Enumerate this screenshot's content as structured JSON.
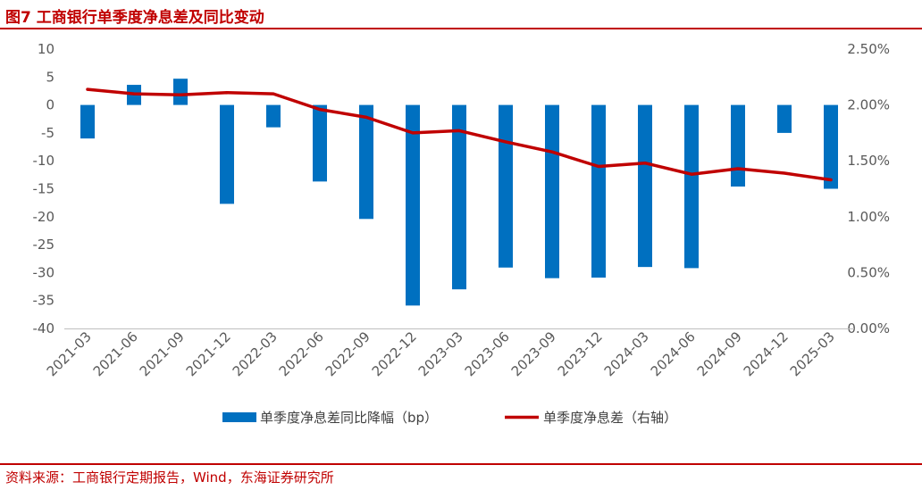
{
  "header": {
    "title": "图7  工商银行单季度净息差及同比变动"
  },
  "footer": {
    "source": "资料来源：工商银行定期报告，Wind，东海证券研究所"
  },
  "chart_data": {
    "type": "bar+line",
    "title": "图7  工商银行单季度净息差及同比变动",
    "categories": [
      "2021-03",
      "2021-06",
      "2021-09",
      "2021-12",
      "2022-03",
      "2022-06",
      "2022-09",
      "2022-12",
      "2023-03",
      "2023-06",
      "2023-09",
      "2023-12",
      "2024-03",
      "2024-06",
      "2024-09",
      "2024-12",
      "2025-03"
    ],
    "series": [
      {
        "name": "单季度净息差同比降幅（bp）",
        "type": "bar",
        "axis": "left",
        "color": "#0070c0",
        "values": [
          -6,
          3.6,
          4.7,
          -17.7,
          -4,
          -13.7,
          -20.4,
          -35.9,
          -33,
          -29.1,
          -31,
          -30.9,
          -29,
          -29.2,
          -14.6,
          -5,
          -15
        ]
      },
      {
        "name": "单季度净息差（右轴）",
        "type": "line",
        "axis": "right",
        "color": "#c00000",
        "values": [
          2.14,
          2.1,
          2.09,
          2.11,
          2.1,
          1.96,
          1.89,
          1.75,
          1.77,
          1.67,
          1.58,
          1.45,
          1.48,
          1.38,
          1.43,
          1.39,
          1.33
        ]
      }
    ],
    "y_left": {
      "min": -40,
      "max": 10,
      "ticks": [
        "10",
        "5",
        "0",
        "-5",
        "-10",
        "-15",
        "-20",
        "-25",
        "-30",
        "-35",
        "-40"
      ]
    },
    "y_right": {
      "min": 0,
      "max": 2.5,
      "ticks": [
        "2.50%",
        "2.00%",
        "1.50%",
        "1.00%",
        "0.50%",
        "0.00%"
      ]
    },
    "legend": {
      "position": "bottom",
      "items": [
        "单季度净息差同比降幅（bp）",
        "单季度净息差（右轴）"
      ]
    }
  }
}
